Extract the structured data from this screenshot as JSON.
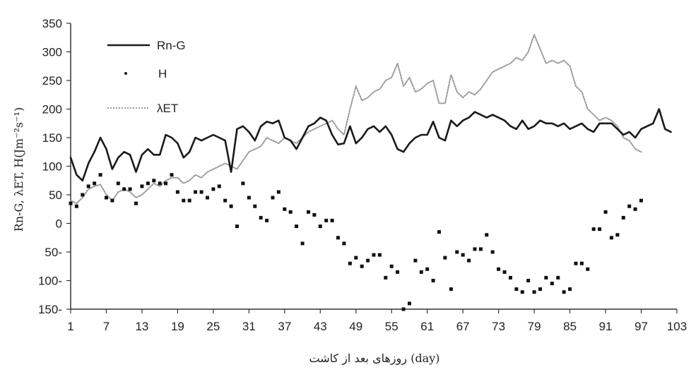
{
  "chart_data": {
    "type": "line",
    "xlabel": "روزهای بعد از کاشت (day)",
    "ylabel": "Rn-G, λET, H(Jm⁻²s⁻¹)",
    "xlim": [
      1,
      103
    ],
    "ylim": [
      -150,
      350
    ],
    "x_ticks": [
      1,
      7,
      13,
      19,
      25,
      31,
      37,
      43,
      49,
      55,
      61,
      67,
      73,
      79,
      85,
      91,
      97,
      103
    ],
    "y_ticks": [
      {
        "v": 350,
        "label": "350"
      },
      {
        "v": 300,
        "label": "300"
      },
      {
        "v": 250,
        "label": "250"
      },
      {
        "v": 200,
        "label": "200"
      },
      {
        "v": 150,
        "label": "150"
      },
      {
        "v": 100,
        "label": "100"
      },
      {
        "v": 50,
        "label": "50"
      },
      {
        "v": 0,
        "label": "0"
      },
      {
        "v": -50,
        "label": "50-"
      },
      {
        "v": -100,
        "label": "100-"
      },
      {
        "v": -150,
        "label": "150-"
      }
    ],
    "grid": false,
    "legend_position": "top-left",
    "series": [
      {
        "name": "Rn-G",
        "style": "solid",
        "color": "#1a1a1a",
        "x": [
          1,
          2,
          3,
          4,
          5,
          6,
          7,
          8,
          9,
          10,
          11,
          12,
          13,
          14,
          15,
          16,
          17,
          18,
          19,
          20,
          21,
          22,
          23,
          24,
          25,
          26,
          27,
          28,
          29,
          30,
          31,
          32,
          33,
          34,
          35,
          36,
          37,
          38,
          39,
          40,
          41,
          42,
          43,
          44,
          45,
          46,
          47,
          48,
          49,
          50,
          51,
          52,
          53,
          54,
          55,
          56,
          57,
          58,
          59,
          60,
          61,
          62,
          63,
          64,
          65,
          66,
          67,
          68,
          69,
          70,
          71,
          72,
          73,
          74,
          75,
          76,
          77,
          78,
          79,
          80,
          81,
          82,
          83,
          84,
          85,
          86,
          87,
          88,
          89,
          90,
          91,
          92,
          93,
          94,
          95,
          96,
          97,
          98,
          99,
          100,
          101,
          102
        ],
        "y": [
          115,
          85,
          75,
          105,
          125,
          150,
          130,
          95,
          115,
          125,
          120,
          90,
          120,
          130,
          120,
          120,
          155,
          150,
          140,
          115,
          125,
          150,
          145,
          150,
          155,
          150,
          145,
          90,
          165,
          170,
          160,
          145,
          170,
          178,
          175,
          180,
          150,
          145,
          130,
          150,
          170,
          175,
          185,
          180,
          155,
          138,
          140,
          170,
          140,
          150,
          165,
          170,
          160,
          170,
          155,
          130,
          125,
          140,
          150,
          155,
          155,
          178,
          150,
          145,
          180,
          170,
          180,
          185,
          195,
          190,
          185,
          190,
          185,
          180,
          170,
          165,
          180,
          165,
          170,
          180,
          175,
          175,
          170,
          175,
          165,
          170,
          175,
          165,
          160,
          175,
          175,
          175,
          165,
          155,
          160,
          150,
          165,
          170,
          175,
          200,
          165,
          160
        ]
      },
      {
        "name": "λET",
        "style": "dotted",
        "color": "#9a9a9a",
        "x": [
          1,
          2,
          3,
          4,
          5,
          6,
          7,
          8,
          9,
          10,
          11,
          12,
          13,
          14,
          15,
          16,
          17,
          18,
          19,
          20,
          21,
          22,
          23,
          24,
          25,
          26,
          27,
          28,
          29,
          30,
          31,
          32,
          33,
          34,
          35,
          36,
          37,
          38,
          39,
          40,
          41,
          42,
          43,
          44,
          45,
          46,
          47,
          48,
          49,
          50,
          51,
          52,
          53,
          54,
          55,
          56,
          57,
          58,
          59,
          60,
          61,
          62,
          63,
          64,
          65,
          66,
          67,
          68,
          69,
          70,
          71,
          72,
          73,
          74,
          75,
          76,
          77,
          78,
          79,
          80,
          81,
          82,
          83,
          84,
          85,
          86,
          87,
          88,
          89,
          90,
          91,
          92,
          93,
          94,
          95,
          96,
          97
        ],
        "y": [
          40,
          35,
          45,
          60,
          65,
          68,
          50,
          40,
          55,
          60,
          55,
          45,
          50,
          60,
          70,
          65,
          75,
          80,
          80,
          70,
          75,
          85,
          80,
          90,
          95,
          100,
          105,
          100,
          95,
          110,
          125,
          130,
          135,
          150,
          145,
          140,
          150,
          145,
          140,
          150,
          160,
          165,
          170,
          175,
          180,
          165,
          155,
          200,
          240,
          215,
          220,
          230,
          235,
          250,
          255,
          280,
          240,
          255,
          230,
          235,
          245,
          250,
          210,
          210,
          260,
          230,
          220,
          230,
          225,
          235,
          250,
          265,
          270,
          275,
          280,
          290,
          285,
          300,
          330,
          305,
          280,
          285,
          280,
          285,
          275,
          240,
          230,
          200,
          190,
          180,
          185,
          180,
          170,
          150,
          145,
          130,
          125
        ]
      }
    ],
    "scatter": {
      "name": "H",
      "color": "#111111",
      "x": [
        1,
        2,
        3,
        4,
        5,
        6,
        7,
        8,
        9,
        10,
        11,
        12,
        13,
        14,
        15,
        16,
        17,
        18,
        19,
        20,
        21,
        22,
        23,
        24,
        25,
        26,
        27,
        28,
        29,
        30,
        31,
        32,
        33,
        34,
        35,
        36,
        37,
        38,
        39,
        40,
        41,
        42,
        43,
        44,
        45,
        46,
        47,
        48,
        49,
        50,
        51,
        52,
        53,
        54,
        55,
        56,
        57,
        58,
        59,
        60,
        61,
        62,
        63,
        64,
        65,
        66,
        67,
        68,
        69,
        70,
        71,
        72,
        73,
        74,
        75,
        76,
        77,
        78,
        79,
        80,
        81,
        82,
        83,
        84,
        85,
        86,
        87,
        88,
        89,
        90,
        91,
        92,
        93,
        94,
        95,
        96,
        97
      ],
      "y": [
        35,
        30,
        50,
        65,
        70,
        85,
        45,
        40,
        70,
        60,
        60,
        35,
        65,
        70,
        75,
        70,
        70,
        85,
        55,
        40,
        40,
        55,
        55,
        45,
        60,
        65,
        40,
        30,
        -5,
        70,
        45,
        30,
        10,
        5,
        45,
        55,
        25,
        20,
        -5,
        -35,
        20,
        15,
        -5,
        5,
        5,
        -25,
        -35,
        -70,
        -60,
        -75,
        -65,
        -55,
        -55,
        -95,
        -75,
        -85,
        -150,
        -140,
        -65,
        -85,
        -80,
        -100,
        -15,
        -60,
        -115,
        -50,
        -55,
        -65,
        -45,
        -45,
        -20,
        -50,
        -80,
        -85,
        -95,
        -115,
        -120,
        -100,
        -120,
        -115,
        -95,
        -105,
        -95,
        -120,
        -115,
        -70,
        -70,
        -80,
        -10,
        -10,
        20,
        -25,
        -20,
        10,
        30,
        25,
        40
      ]
    },
    "legend": [
      {
        "label": "Rn-G",
        "style": "solid"
      },
      {
        "label": "H",
        "style": "dot"
      },
      {
        "label": "λET",
        "style": "dotted"
      }
    ]
  }
}
